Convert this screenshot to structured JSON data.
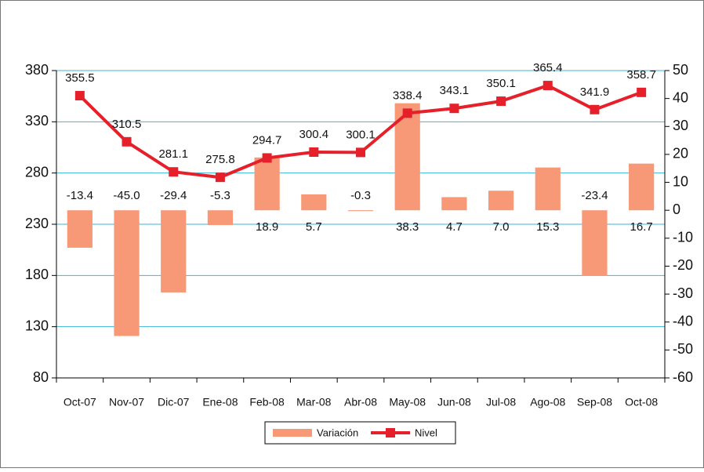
{
  "chart_data": {
    "type": "bar-line",
    "categories": [
      "Oct-07",
      "Nov-07",
      "Dic-07",
      "Ene-08",
      "Feb-08",
      "Mar-08",
      "Abr-08",
      "May-08",
      "Jun-08",
      "Jul-08",
      "Ago-08",
      "Sep-08",
      "Oct-08"
    ],
    "series": [
      {
        "name": "Variación",
        "type": "bar",
        "axis": "y2",
        "color": "#f79877",
        "values": [
          -13.4,
          -45.0,
          -29.4,
          -5.3,
          18.9,
          5.7,
          -0.3,
          38.3,
          4.7,
          7.0,
          15.3,
          -23.4,
          16.7
        ],
        "value_labels": [
          "-13.4",
          "-45.0",
          "-29.4",
          "-5.3",
          "18.9",
          "5.7",
          "-0.3",
          "38.3",
          "4.7",
          "7.0",
          "15.3",
          "-23.4",
          "16.7"
        ]
      },
      {
        "name": "Nivel",
        "type": "line",
        "color": "#e6202a",
        "values": [
          355.5,
          310.5,
          281.1,
          275.8,
          294.7,
          300.4,
          300.1,
          338.4,
          343.1,
          350.1,
          365.4,
          341.9,
          358.7
        ]
      }
    ],
    "ylim": [
      80,
      380
    ],
    "yticks": [
      80,
      130,
      180,
      230,
      280,
      330,
      380
    ],
    "y2lim": [
      -60,
      50
    ],
    "y2ticks": [
      -60,
      -50,
      -40,
      -30,
      -20,
      -10,
      0,
      10,
      20,
      30,
      40,
      50
    ],
    "grid": true,
    "legend": "bottom"
  }
}
